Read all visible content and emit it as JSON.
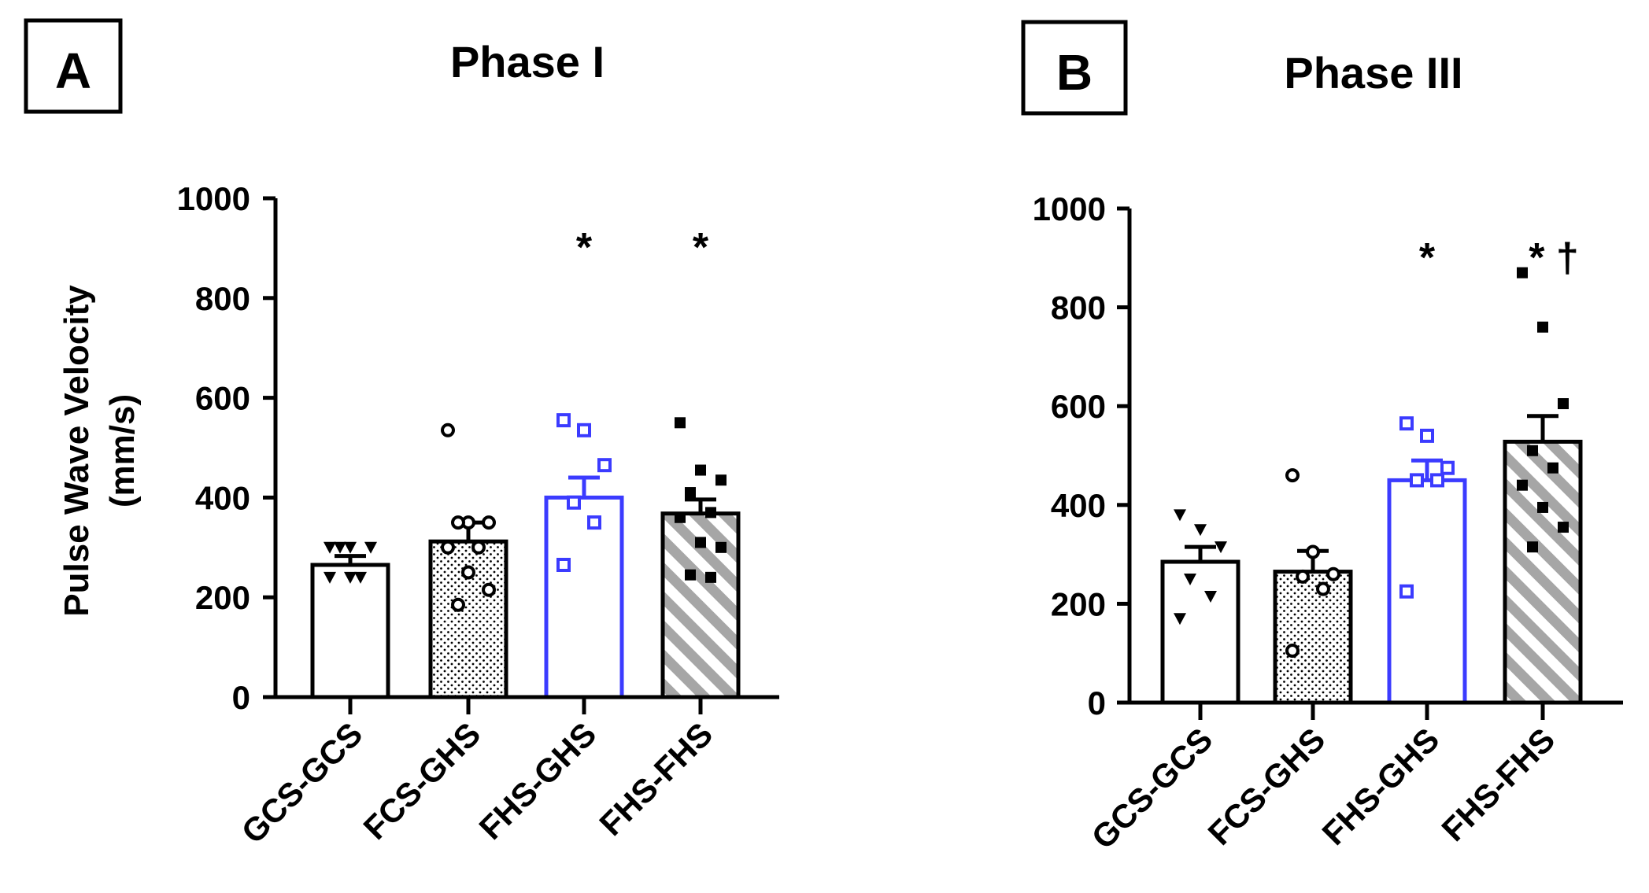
{
  "panels": [
    {
      "letter": "A",
      "title": "Phase I",
      "ylabel_line1": "Pulse Wave Velocity",
      "ylabel_line2": "(mm/s)"
    },
    {
      "letter": "B",
      "title": "Phase III"
    }
  ],
  "colors": {
    "blue": "#3b3bff",
    "black": "#000000",
    "hatch": "#a6a6a6"
  },
  "chart_data": [
    {
      "type": "bar",
      "title": "Phase I",
      "ylabel": "Pulse Wave Velocity (mm/s)",
      "ylim": [
        0,
        1000
      ],
      "yticks": [
        0,
        200,
        400,
        600,
        800,
        1000
      ],
      "categories": [
        "GCS-GCS",
        "FCS-GHS",
        "FHS-GHS",
        "FHS-FHS"
      ],
      "values": [
        265,
        312,
        400,
        368
      ],
      "errors": [
        18,
        38,
        40,
        28
      ],
      "fills": [
        "white",
        "dots",
        "white",
        "hatch"
      ],
      "edges": [
        "black",
        "black",
        "blue",
        "black"
      ],
      "markers": [
        "triangle-down",
        "circle",
        "square-open",
        "square"
      ],
      "points": [
        [
          300,
          300,
          300,
          300,
          240,
          240,
          240
        ],
        [
          535,
          350,
          350,
          350,
          300,
          300,
          250,
          215,
          185
        ],
        [
          555,
          535,
          465,
          390,
          350,
          265
        ],
        [
          550,
          455,
          435,
          410,
          370,
          360,
          310,
          300,
          245,
          240
        ]
      ],
      "annotations": [
        "",
        "",
        "*",
        "*"
      ]
    },
    {
      "type": "bar",
      "title": "Phase III",
      "ylabel": "",
      "ylim": [
        0,
        1000
      ],
      "yticks": [
        0,
        200,
        400,
        600,
        800,
        1000
      ],
      "categories": [
        "GCS-GCS",
        "FCS-GHS",
        "FHS-GHS",
        "FHS-FHS"
      ],
      "values": [
        285,
        265,
        450,
        528
      ],
      "errors": [
        30,
        42,
        40,
        52
      ],
      "fills": [
        "white",
        "dots",
        "white",
        "hatch"
      ],
      "edges": [
        "black",
        "black",
        "blue",
        "black"
      ],
      "markers": [
        "triangle-down",
        "circle",
        "square-open",
        "square"
      ],
      "points": [
        [
          380,
          350,
          315,
          250,
          215,
          170
        ],
        [
          460,
          305,
          260,
          255,
          230,
          105
        ],
        [
          565,
          540,
          475,
          450,
          450,
          225
        ],
        [
          870,
          760,
          605,
          510,
          475,
          440,
          395,
          355,
          315
        ]
      ],
      "annotations": [
        "",
        "",
        "*",
        "* †"
      ]
    }
  ]
}
